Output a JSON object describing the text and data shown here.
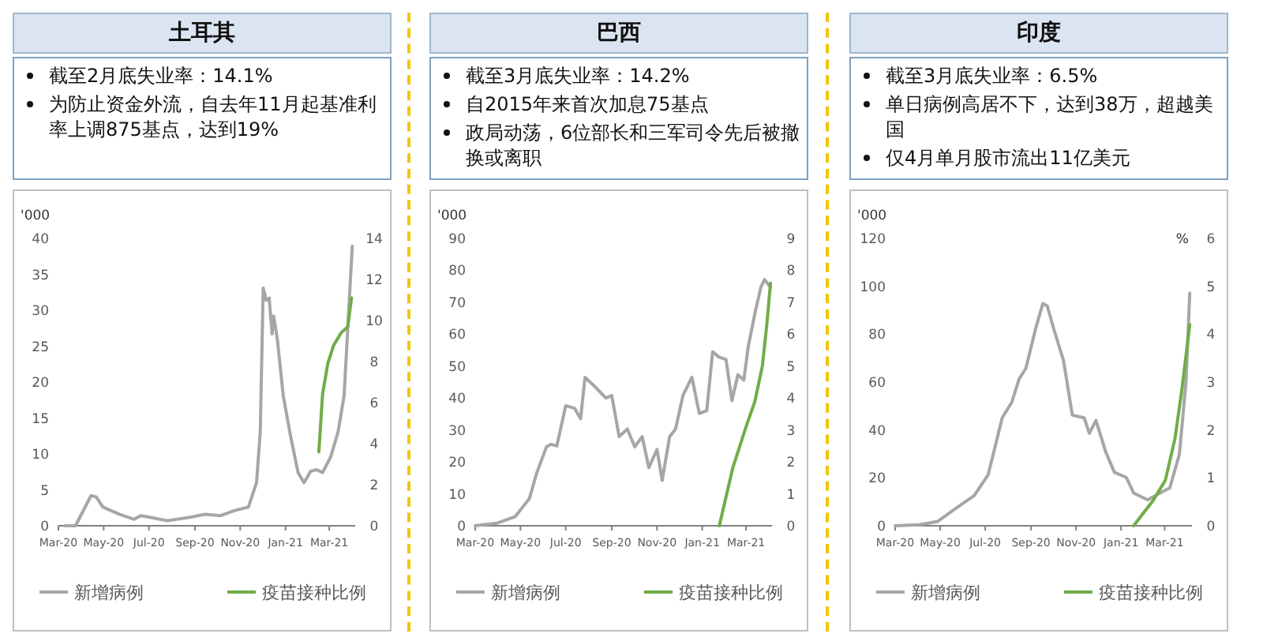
{
  "chart_data": [
    {
      "type": "line",
      "title": "土耳其",
      "annotations": [
        "截至2月底失业率：14.1%",
        "为防止资金外流，自去年11月起基准利率上调875基点，达到19%"
      ],
      "ylabel": "'000",
      "legend": "bottom",
      "grid": false,
      "xlim": [
        "2020-03-01",
        "2021-04-05"
      ],
      "xticks": [
        {
          "value": "2020-03-01",
          "label": "Mar-20"
        },
        {
          "value": "2020-05-01",
          "label": "May-20"
        },
        {
          "value": "2020-07-01",
          "label": "Jul-20"
        },
        {
          "value": "2020-09-01",
          "label": "Sep-20"
        },
        {
          "value": "2020-11-01",
          "label": "Nov-20"
        },
        {
          "value": "2021-01-01",
          "label": "Jan-21"
        },
        {
          "value": "2021-03-01",
          "label": "Mar-21"
        }
      ],
      "ylim": [
        0,
        40
      ],
      "yticks": [
        0,
        5,
        10,
        15,
        20,
        25,
        30,
        35,
        40
      ],
      "y2lim": [
        0,
        14
      ],
      "y2ticks": [
        0,
        2,
        4,
        6,
        8,
        10,
        12,
        14
      ],
      "series": [
        {
          "name": "新增病例",
          "color": "#a6a6a6",
          "x": [
            "2020-03-10",
            "2020-03-24",
            "2020-04-14",
            "2020-04-21",
            "2020-04-30",
            "2020-05-22",
            "2020-06-11",
            "2020-06-20",
            "2020-07-01",
            "2020-07-26",
            "2020-08-27",
            "2020-09-15",
            "2020-10-05",
            "2020-10-24",
            "2020-11-12",
            "2020-11-23",
            "2020-11-28",
            "2020-12-02",
            "2020-12-06",
            "2020-12-10",
            "2020-12-14",
            "2020-12-16",
            "2020-12-21",
            "2020-12-29",
            "2021-01-08",
            "2021-01-18",
            "2021-01-26",
            "2021-02-04",
            "2021-02-12",
            "2021-02-20",
            "2021-03-03",
            "2021-03-13",
            "2021-03-21",
            "2021-04-01"
          ],
          "values": [
            0,
            0,
            4.2,
            4.0,
            2.6,
            1.6,
            0.9,
            1.4,
            1.2,
            0.7,
            1.2,
            1.6,
            1.4,
            2.1,
            2.6,
            6,
            13,
            33.1,
            31.4,
            31.7,
            26.7,
            29.2,
            26,
            18.1,
            12.4,
            7.4,
            6,
            7.6,
            7.8,
            7.4,
            9.6,
            13.1,
            18.1,
            38.9
          ]
        },
        {
          "name": "疫苗接种比例",
          "color": "#70ad47",
          "axis": "y2",
          "x": [
            "2021-02-15",
            "2021-02-20",
            "2021-02-27",
            "2021-03-07",
            "2021-03-17",
            "2021-03-26",
            "2021-03-31"
          ],
          "values": [
            3.6,
            6.4,
            7.9,
            8.8,
            9.4,
            9.7,
            11.1
          ]
        }
      ]
    },
    {
      "type": "line",
      "title": "巴西",
      "annotations": [
        "截至3月底失业率：14.2%",
        "自2015年来首次加息75基点",
        "政局动荡，6位部长和三军司令先后被撤换或离职"
      ],
      "ylabel": "'000",
      "legend": "bottom",
      "grid": false,
      "xlim": [
        "2020-03-01",
        "2021-04-05"
      ],
      "xticks": [
        {
          "value": "2020-03-01",
          "label": "Mar-20"
        },
        {
          "value": "2020-05-01",
          "label": "May-20"
        },
        {
          "value": "2020-07-01",
          "label": "Jul-20"
        },
        {
          "value": "2020-09-01",
          "label": "Sep-20"
        },
        {
          "value": "2020-11-01",
          "label": "Nov-20"
        },
        {
          "value": "2021-01-01",
          "label": "Jan-21"
        },
        {
          "value": "2021-03-01",
          "label": "Mar-21"
        }
      ],
      "ylim": [
        0,
        90
      ],
      "yticks": [
        0,
        10,
        20,
        30,
        40,
        50,
        60,
        70,
        80,
        90
      ],
      "y2lim": [
        0,
        9
      ],
      "y2ticks": [
        0,
        1,
        2,
        3,
        4,
        5,
        6,
        7,
        8,
        9
      ],
      "series": [
        {
          "name": "新增病例",
          "color": "#a6a6a6",
          "x": [
            "2020-03-01",
            "2020-03-30",
            "2020-04-24",
            "2020-05-13",
            "2020-05-23",
            "2020-06-05",
            "2020-06-11",
            "2020-06-19",
            "2020-07-01",
            "2020-07-13",
            "2020-07-21",
            "2020-07-27",
            "2020-08-11",
            "2020-08-24",
            "2020-09-01",
            "2020-09-11",
            "2020-09-22",
            "2020-10-02",
            "2020-10-12",
            "2020-10-21",
            "2020-11-01",
            "2020-11-08",
            "2020-11-18",
            "2020-11-26",
            "2020-12-06",
            "2020-12-18",
            "2020-12-28",
            "2021-01-07",
            "2021-01-15",
            "2021-01-23",
            "2021-02-02",
            "2021-02-10",
            "2021-02-18",
            "2021-02-26",
            "2021-03-04",
            "2021-03-13",
            "2021-03-21",
            "2021-03-26",
            "2021-04-03"
          ],
          "values": [
            0,
            0.8,
            2.9,
            8.5,
            16.6,
            24.7,
            25.5,
            25,
            37.6,
            36.8,
            33.5,
            46.5,
            43.2,
            40,
            40.8,
            27.9,
            30.3,
            24.7,
            27.9,
            18.2,
            23.9,
            14.2,
            27.9,
            30.3,
            40.8,
            46.5,
            35.2,
            36,
            54.5,
            52.9,
            52.1,
            39.2,
            47.3,
            45.6,
            56.1,
            66.6,
            74.7,
            77.1,
            74.7
          ]
        },
        {
          "name": "疫苗接种比例",
          "color": "#70ad47",
          "axis": "y2",
          "x": [
            "2021-01-24",
            "2021-02-11",
            "2021-03-01",
            "2021-03-13",
            "2021-03-23",
            "2021-03-29",
            "2021-04-03"
          ],
          "values": [
            0,
            1.8,
            3.1,
            3.9,
            5.0,
            6.3,
            7.6
          ]
        }
      ]
    },
    {
      "type": "line",
      "title": "印度",
      "annotations": [
        "截至3月底失业率：6.5%",
        "单日病例高居不下，达到38万，超越美国",
        "仅4月单月股市流出11亿美元"
      ],
      "ylabel": "'000",
      "y2label": "%",
      "legend": "bottom",
      "grid": false,
      "xlim": [
        "2020-03-01",
        "2021-04-07"
      ],
      "xticks": [
        {
          "value": "2020-03-01",
          "label": "Mar-20"
        },
        {
          "value": "2020-05-01",
          "label": "May-20"
        },
        {
          "value": "2020-07-01",
          "label": "Jul-20"
        },
        {
          "value": "2020-09-01",
          "label": "Sep-20"
        },
        {
          "value": "2020-11-01",
          "label": "Nov-20"
        },
        {
          "value": "2021-01-01",
          "label": "Jan-21"
        },
        {
          "value": "2021-03-01",
          "label": "Mar-21"
        }
      ],
      "ylim": [
        0,
        120
      ],
      "yticks": [
        0,
        20,
        40,
        60,
        80,
        100,
        120
      ],
      "y2lim": [
        0,
        6
      ],
      "y2ticks": [
        0,
        1,
        2,
        3,
        4,
        5,
        6
      ],
      "series": [
        {
          "name": "新增病例",
          "color": "#a6a6a6",
          "x": [
            "2020-03-01",
            "2020-04-02",
            "2020-04-27",
            "2020-05-22",
            "2020-06-16",
            "2020-07-05",
            "2020-07-24",
            "2020-08-06",
            "2020-08-16",
            "2020-08-25",
            "2020-09-07",
            "2020-09-17",
            "2020-09-23",
            "2020-10-02",
            "2020-10-15",
            "2020-10-27",
            "2020-11-12",
            "2020-11-19",
            "2020-11-28",
            "2020-12-11",
            "2020-12-23",
            "2021-01-08",
            "2021-01-18",
            "2021-02-06",
            "2021-02-19",
            "2021-03-08",
            "2021-03-21",
            "2021-03-30",
            "2021-04-04"
          ],
          "values": [
            0,
            0.4,
            1.7,
            7.2,
            12.6,
            21.3,
            45.1,
            51.6,
            61.4,
            65.7,
            82,
            92.8,
            91.8,
            82,
            69,
            46.2,
            45.1,
            38.6,
            44,
            31,
            22.3,
            20.2,
            13.7,
            10.8,
            13,
            15.8,
            29.9,
            60.3,
            97.2
          ]
        },
        {
          "name": "疫苗接种比例",
          "color": "#70ad47",
          "axis": "y2",
          "x": [
            "2021-01-18",
            "2021-02-13",
            "2021-03-02",
            "2021-03-15",
            "2021-03-24",
            "2021-03-30",
            "2021-04-04"
          ],
          "values": [
            0,
            0.52,
            0.95,
            1.82,
            2.8,
            3.56,
            4.2
          ]
        }
      ]
    }
  ]
}
